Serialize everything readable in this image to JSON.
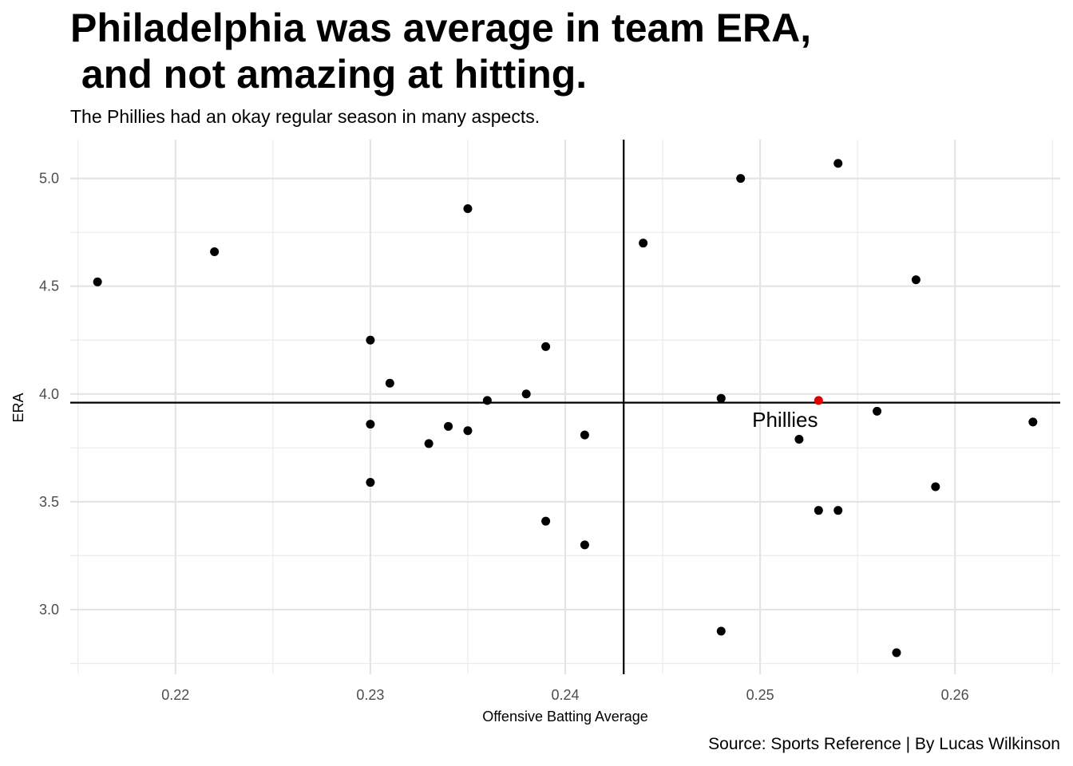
{
  "chart_data": {
    "type": "scatter",
    "title": "Philadelphia was average in team ERA,\n and not amazing at hitting.",
    "subtitle": "The Phillies had an okay regular season in many aspects.",
    "caption": "Source: Sports Reference | By Lucas Wilkinson",
    "xlabel": "Offensive Batting Average",
    "ylabel": "ERA",
    "xlim": [
      0.2146,
      0.2654
    ],
    "ylim": [
      2.7,
      5.18
    ],
    "x_ticks": [
      0.22,
      0.23,
      0.24,
      0.25,
      0.26
    ],
    "x_tick_labels": [
      "0.22",
      "0.23",
      "0.24",
      "0.25",
      "0.26"
    ],
    "y_ticks": [
      3.0,
      3.5,
      4.0,
      4.5,
      5.0
    ],
    "y_tick_labels": [
      "3.0",
      "3.5",
      "4.0",
      "4.5",
      "5.0"
    ],
    "grid": true,
    "reference_lines": {
      "x": 0.243,
      "y": 3.96
    },
    "highlight_color": "#e00000",
    "point_color": "#000000",
    "points": [
      {
        "x": 0.216,
        "y": 4.52
      },
      {
        "x": 0.222,
        "y": 4.66
      },
      {
        "x": 0.23,
        "y": 4.25
      },
      {
        "x": 0.23,
        "y": 3.86
      },
      {
        "x": 0.23,
        "y": 3.59
      },
      {
        "x": 0.231,
        "y": 4.05
      },
      {
        "x": 0.233,
        "y": 3.77
      },
      {
        "x": 0.234,
        "y": 3.85
      },
      {
        "x": 0.235,
        "y": 4.86
      },
      {
        "x": 0.235,
        "y": 3.83
      },
      {
        "x": 0.236,
        "y": 3.97
      },
      {
        "x": 0.238,
        "y": 4.0
      },
      {
        "x": 0.239,
        "y": 4.22
      },
      {
        "x": 0.239,
        "y": 3.41
      },
      {
        "x": 0.241,
        "y": 3.81
      },
      {
        "x": 0.241,
        "y": 3.3
      },
      {
        "x": 0.244,
        "y": 4.7
      },
      {
        "x": 0.248,
        "y": 3.98
      },
      {
        "x": 0.248,
        "y": 2.9
      },
      {
        "x": 0.249,
        "y": 5.0
      },
      {
        "x": 0.252,
        "y": 3.79
      },
      {
        "x": 0.253,
        "y": 3.46
      },
      {
        "x": 0.254,
        "y": 5.07
      },
      {
        "x": 0.254,
        "y": 3.46
      },
      {
        "x": 0.256,
        "y": 3.92
      },
      {
        "x": 0.257,
        "y": 2.8
      },
      {
        "x": 0.258,
        "y": 4.53
      },
      {
        "x": 0.259,
        "y": 3.57
      },
      {
        "x": 0.264,
        "y": 3.87
      },
      {
        "x": 0.253,
        "y": 3.97,
        "label": "Phillies",
        "highlight": true
      }
    ]
  }
}
